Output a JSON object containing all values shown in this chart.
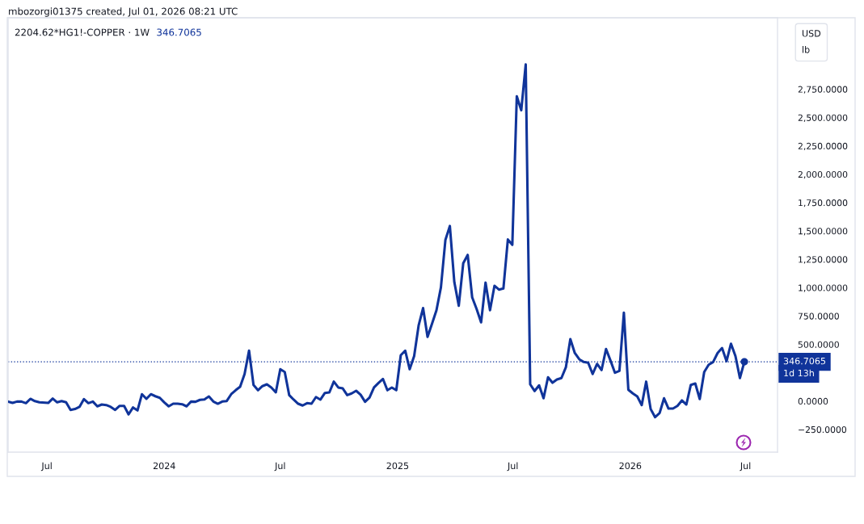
{
  "chart_data": {
    "type": "line",
    "title": "2204.62*HG1!-COPPER · 1W",
    "ylabel": "USD\nlb",
    "annotations": [
      "mbozorgi01375 created, Jul 01, 2026 08:21 UTC",
      "346.7065",
      "1d 13h"
    ],
    "x": [
      "2023-05-01",
      "2023-05-08",
      "2023-05-15",
      "2023-05-22",
      "2023-05-29",
      "2023-06-05",
      "2023-06-12",
      "2023-06-19",
      "2023-07-03",
      "2023-07-10",
      "2023-07-17",
      "2023-07-24",
      "2023-07-31",
      "2023-08-07",
      "2023-08-14",
      "2023-08-21",
      "2023-08-28",
      "2023-09-04",
      "2023-09-11",
      "2023-09-18",
      "2023-09-25",
      "2023-10-02",
      "2023-10-09",
      "2023-10-16",
      "2023-10-23",
      "2023-10-30",
      "2023-11-06",
      "2023-11-13",
      "2023-11-20",
      "2023-11-27",
      "2023-12-04",
      "2023-12-11",
      "2023-12-18",
      "2023-12-25",
      "2024-01-01",
      "2024-01-08",
      "2024-01-15",
      "2024-01-22",
      "2024-01-29",
      "2024-02-05",
      "2024-02-12",
      "2024-02-19",
      "2024-02-26",
      "2024-03-04",
      "2024-03-11",
      "2024-03-18",
      "2024-03-25",
      "2024-04-01",
      "2024-04-08",
      "2024-04-15",
      "2024-04-22",
      "2024-04-29",
      "2024-05-06",
      "2024-05-13",
      "2024-05-20",
      "2024-05-27",
      "2024-06-03",
      "2024-06-10",
      "2024-06-17",
      "2024-06-24",
      "2024-07-01",
      "2024-07-08",
      "2024-07-15",
      "2024-07-22",
      "2024-07-29",
      "2024-08-05",
      "2024-08-12",
      "2024-08-19",
      "2024-08-26",
      "2024-09-02",
      "2024-09-09",
      "2024-09-16",
      "2024-09-23",
      "2024-09-30",
      "2024-10-07",
      "2024-10-14",
      "2024-10-21",
      "2024-10-28",
      "2024-11-04",
      "2024-11-11",
      "2024-11-18",
      "2024-11-25",
      "2024-12-02",
      "2024-12-09",
      "2024-12-16",
      "2024-12-23",
      "2024-12-30",
      "2025-01-06",
      "2025-01-13",
      "2025-01-20",
      "2025-01-27",
      "2025-02-03",
      "2025-02-10",
      "2025-02-17",
      "2025-02-24",
      "2025-03-03",
      "2025-03-10",
      "2025-03-17",
      "2025-03-24",
      "2025-03-31",
      "2025-04-07",
      "2025-04-14",
      "2025-04-21",
      "2025-04-28",
      "2025-05-05",
      "2025-05-12",
      "2025-05-19",
      "2025-05-26",
      "2025-06-02",
      "2025-06-09",
      "2025-06-16",
      "2025-06-23",
      "2025-06-30",
      "2025-07-07",
      "2025-07-14",
      "2025-07-21",
      "2025-07-28",
      "2025-08-04",
      "2025-08-11",
      "2025-08-18",
      "2025-08-25",
      "2025-09-01",
      "2025-09-08",
      "2025-09-15",
      "2025-09-22",
      "2025-09-29",
      "2025-10-06",
      "2025-10-13",
      "2025-10-20",
      "2025-10-27",
      "2025-11-03",
      "2025-11-10",
      "2025-11-17",
      "2025-11-24",
      "2025-12-01",
      "2025-12-08",
      "2025-12-15",
      "2025-12-22",
      "2025-12-29",
      "2026-01-05",
      "2026-01-12",
      "2026-01-19",
      "2026-01-26",
      "2026-02-02",
      "2026-02-09",
      "2026-02-16",
      "2026-02-23",
      "2026-03-02",
      "2026-03-09",
      "2026-03-16",
      "2026-03-23",
      "2026-03-30",
      "2026-04-06",
      "2026-04-13",
      "2026-04-20",
      "2026-04-27",
      "2026-05-04",
      "2026-05-11",
      "2026-05-18",
      "2026-05-25",
      "2026-06-01",
      "2026-06-08",
      "2026-06-15",
      "2026-06-22",
      "2026-06-29"
    ],
    "series": [
      {
        "color": "#10349a",
        "values": [
          -4,
          -16,
          -4,
          -4,
          -18,
          20,
          0,
          -11,
          -16,
          22,
          -11,
          0,
          -11,
          -78,
          -70,
          -51,
          18,
          -18,
          -4,
          -46,
          -30,
          -35,
          -51,
          -78,
          -42,
          -42,
          -117,
          -56,
          -82,
          61,
          20,
          61,
          43,
          29,
          -11,
          -46,
          -23,
          -23,
          -28,
          -46,
          -4,
          -6,
          11,
          15,
          41,
          -4,
          -23,
          -4,
          1,
          61,
          96,
          127,
          239,
          445,
          143,
          96,
          132,
          148,
          120,
          77,
          281,
          257,
          53,
          13,
          -23,
          -39,
          -18,
          -23,
          36,
          13,
          72,
          77,
          172,
          120,
          112,
          53,
          68,
          91,
          56,
          -6,
          32,
          120,
          160,
          196,
          96,
          120,
          96,
          404,
          445,
          281,
          397,
          666,
          820,
          566,
          682,
          801,
          1003,
          1420,
          1544,
          1050,
          841,
          1216,
          1289,
          915,
          812,
          694,
          1045,
          801,
          1017,
          983,
          993,
          1425,
          1378,
          2688,
          2564,
          2968,
          148,
          89,
          139,
          25,
          210,
          162,
          191,
          203,
          298,
          547,
          424,
          369,
          345,
          338,
          239,
          328,
          274,
          459,
          357,
          250,
          267,
          780,
          100,
          68,
          41,
          -35,
          172,
          -70,
          -142,
          -106,
          25,
          -66,
          -66,
          -42,
          6,
          -30,
          143,
          155,
          18,
          257,
          321,
          345,
          424,
          468,
          352,
          506,
          397,
          203,
          347
        ]
      },
      {
        "type": "scatter",
        "x": [
          "2026-06-29"
        ],
        "values": [
          347
        ],
        "color": "#10349a",
        "marker": "circle"
      }
    ],
    "ref_lines": [
      {
        "axis": "y",
        "value": 346.7065,
        "label": "346.7065",
        "color": "#10349a",
        "line_style": "dotted"
      }
    ],
    "xlim": [
      "2023-05-01",
      "2026-08-20"
    ],
    "ylim": [
      -450,
      3380
    ],
    "xticks": [
      {
        "value": "2023-07-01",
        "label": "Jul"
      },
      {
        "value": "2024-01-01",
        "label": "2024"
      },
      {
        "value": "2024-07-01",
        "label": "Jul"
      },
      {
        "value": "2025-01-01",
        "label": "2025"
      },
      {
        "value": "2025-07-01",
        "label": "Jul"
      },
      {
        "value": "2026-01-01",
        "label": "2026"
      },
      {
        "value": "2026-07-01",
        "label": "Jul"
      }
    ],
    "yticks": [
      {
        "value": -250,
        "label": "−250.0000"
      },
      {
        "value": 0,
        "label": "0.0000"
      },
      {
        "value": 500,
        "label": "500.0000"
      },
      {
        "value": 750,
        "label": "750.0000"
      },
      {
        "value": 1000,
        "label": "1,000.0000"
      },
      {
        "value": 1250,
        "label": "1,250.0000"
      },
      {
        "value": 1500,
        "label": "1,500.0000"
      },
      {
        "value": 1750,
        "label": "1,750.0000"
      },
      {
        "value": 2000,
        "label": "2,000.0000"
      },
      {
        "value": 2250,
        "label": "2,250.0000"
      },
      {
        "value": 2500,
        "label": "2,500.0000"
      },
      {
        "value": 2750,
        "label": "2,750.0000"
      }
    ]
  }
}
